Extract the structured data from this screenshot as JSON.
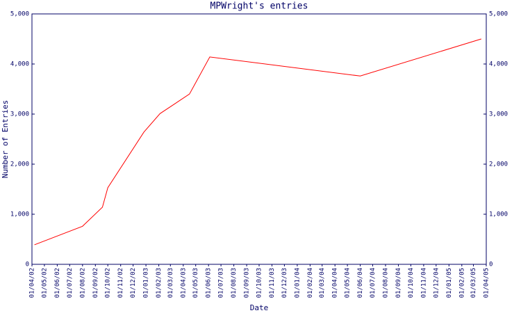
{
  "chart_data": {
    "type": "line",
    "title": "MPWright's entries",
    "x_label": "Date",
    "y_label": "Number of Entries",
    "x": [
      "07/04/02",
      "01/08/02",
      "18/09/02",
      "01/10/02",
      "27/12/02",
      "04/02/03",
      "16/04/03",
      "04/06/03",
      "01/06/04",
      "20/03/05"
    ],
    "series": [
      {
        "name": "MPWright",
        "color": "#ff0000",
        "values": [
          390,
          760,
          1140,
          1530,
          2640,
          3010,
          3400,
          4140,
          3760,
          4500
        ]
      }
    ],
    "xlim": [
      "01/04/02",
      "01/04/05"
    ],
    "xticks": [
      "01/04/02",
      "01/05/02",
      "01/06/02",
      "01/07/02",
      "01/08/02",
      "01/09/02",
      "01/10/02",
      "01/11/02",
      "01/12/02",
      "01/01/03",
      "01/02/03",
      "01/03/03",
      "01/04/03",
      "01/05/03",
      "01/06/03",
      "01/07/03",
      "01/08/03",
      "01/09/03",
      "01/10/03",
      "01/11/03",
      "01/12/03",
      "01/01/04",
      "01/02/04",
      "01/03/04",
      "01/04/04",
      "01/05/04",
      "01/06/04",
      "01/07/04",
      "01/08/04",
      "01/09/04",
      "01/10/04",
      "01/11/04",
      "01/12/04",
      "01/01/05",
      "01/02/05",
      "01/03/05",
      "01/04/05"
    ],
    "ylim": [
      0,
      5000
    ],
    "yticks": [
      0,
      {
        "value": 1000,
        "label": "1,000"
      },
      {
        "value": 2000,
        "label": "2,000"
      },
      {
        "value": 3000,
        "label": "3,000"
      },
      {
        "value": 4000,
        "label": "4,000"
      },
      {
        "value": 5000,
        "label": "5,000"
      }
    ],
    "y2lim": [
      0,
      5000
    ],
    "y2ticks": [
      0,
      {
        "value": 1000,
        "label": "1,000"
      },
      {
        "value": 2000,
        "label": "2,000"
      },
      {
        "value": 3000,
        "label": "3,000"
      },
      {
        "value": 4000,
        "label": "4,000"
      },
      {
        "value": 5000,
        "label": "5,000"
      }
    ]
  }
}
